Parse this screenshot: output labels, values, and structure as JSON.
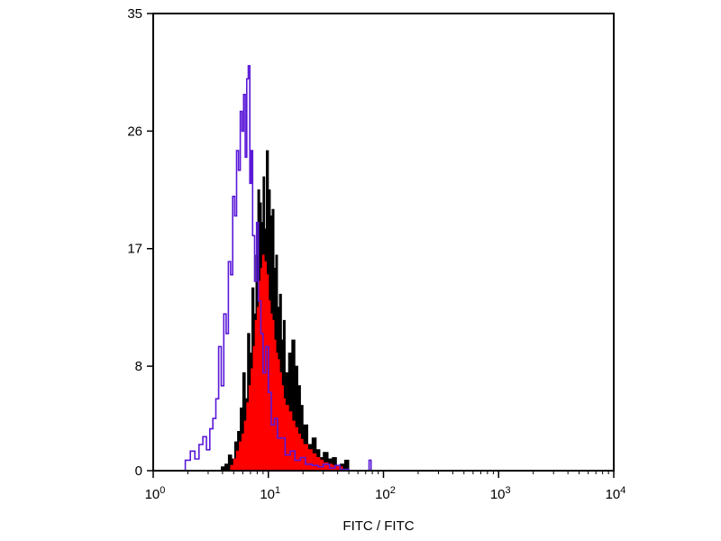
{
  "chart_data": {
    "type": "area",
    "xscale": "log",
    "xlim": [
      1,
      10000
    ],
    "ylim": [
      0,
      35
    ],
    "xlabel": "FITC / FITC",
    "ylabel": "",
    "x_tick_values": [
      1,
      10,
      100,
      1000,
      10000
    ],
    "x_tick_labels": [
      {
        "base": "10",
        "exp": "0"
      },
      {
        "base": "10",
        "exp": "1"
      },
      {
        "base": "10",
        "exp": "2"
      },
      {
        "base": "10",
        "exp": "3"
      },
      {
        "base": "10",
        "exp": "4"
      }
    ],
    "y_tick_values": [
      0,
      8,
      17,
      26,
      35
    ],
    "y_tick_labels": [
      "0",
      "8",
      "17",
      "26",
      "35"
    ],
    "grid": false,
    "series": [
      {
        "style": "outline",
        "color": "#5a18d8",
        "x": [
          1.7,
          1.9,
          2.1,
          2.3,
          2.5,
          2.7,
          2.9,
          3.1,
          3.3,
          3.5,
          3.7,
          3.9,
          4.1,
          4.3,
          4.5,
          4.7,
          4.9,
          5.1,
          5.3,
          5.5,
          5.7,
          5.9,
          6.1,
          6.3,
          6.5,
          6.7,
          6.9,
          7.1,
          7.3,
          7.6,
          7.9,
          8.2,
          8.6,
          9.0,
          9.5,
          10.0,
          10.6,
          11.3,
          12.0,
          13.0,
          14.0,
          15.5,
          17.0,
          19.0,
          21.0,
          24.0,
          27.0,
          30.0,
          34.0,
          38.0,
          42.0,
          50.0,
          60.0,
          70.0,
          75.0,
          78.0,
          80.0
        ],
        "y": [
          0,
          0.8,
          1.5,
          0.9,
          2.0,
          2.6,
          1.6,
          3.2,
          4.0,
          5.5,
          9.5,
          6.5,
          12.0,
          10.5,
          16.0,
          15.0,
          21.0,
          19.5,
          24.5,
          23.0,
          27.5,
          26.0,
          28.8,
          24.0,
          30.0,
          31.0,
          22.0,
          24.5,
          18.0,
          14.5,
          19.0,
          13.0,
          10.5,
          7.5,
          9.5,
          6.0,
          3.5,
          4.0,
          2.5,
          2.5,
          1.2,
          1.5,
          0.8,
          1.0,
          0.5,
          0.4,
          0.3,
          0.5,
          0.2,
          0.4,
          0.1,
          0,
          0,
          0,
          0.8,
          0,
          0
        ]
      },
      {
        "style": "filled",
        "color": "#000000",
        "x": [
          3.6,
          3.9,
          4.2,
          4.5,
          4.8,
          5.1,
          5.4,
          5.7,
          6.0,
          6.3,
          6.6,
          6.9,
          7.2,
          7.5,
          7.8,
          8.1,
          8.4,
          8.7,
          9.0,
          9.3,
          9.6,
          10.0,
          10.4,
          10.8,
          11.2,
          11.6,
          12.0,
          12.5,
          13.0,
          13.5,
          14.0,
          15.0,
          16.0,
          17.0,
          18.0,
          19.0,
          20.0,
          22.0,
          24.0,
          26.0,
          28.0,
          30.0,
          33.0,
          36.0,
          39.0,
          42.0,
          46.0,
          50.0
        ],
        "y": [
          0,
          0.3,
          0.5,
          1.2,
          0.9,
          2.2,
          3.0,
          4.8,
          7.5,
          5.5,
          10.5,
          9.0,
          14.0,
          12.0,
          16.5,
          21.5,
          20.5,
          19.0,
          22.5,
          18.5,
          24.5,
          21.5,
          19.5,
          20.0,
          15.5,
          16.5,
          12.5,
          13.5,
          10.0,
          11.5,
          7.5,
          9.0,
          10.0,
          8.0,
          6.5,
          5.0,
          3.5,
          2.0,
          2.5,
          1.6,
          1.0,
          1.4,
          0.9,
          1.0,
          0.3,
          0.5,
          0.8,
          0
        ]
      },
      {
        "style": "filled",
        "color": "#ff0000",
        "x": [
          4.4,
          4.7,
          5.0,
          5.3,
          5.6,
          5.9,
          6.2,
          6.5,
          6.8,
          7.1,
          7.4,
          7.7,
          8.0,
          8.3,
          8.6,
          8.9,
          9.2,
          9.6,
          10.0,
          10.4,
          10.8,
          11.2,
          11.6,
          12.0,
          12.5,
          13.0,
          13.5,
          14.0,
          15.0,
          16.0,
          17.0,
          18.0,
          19.0,
          20.0,
          22.0,
          24.0,
          26.0,
          28.0,
          30.0,
          33.0,
          36.0,
          40.0,
          44.0,
          48.0
        ],
        "y": [
          0,
          0.4,
          0.9,
          1.5,
          2.2,
          2.8,
          3.8,
          5.2,
          6.5,
          7.8,
          9.5,
          11.5,
          12.5,
          14.5,
          15.5,
          16.5,
          16.0,
          15.0,
          13.0,
          12.0,
          11.5,
          10.0,
          9.0,
          8.5,
          7.5,
          6.5,
          5.5,
          5.0,
          4.5,
          3.8,
          3.3,
          2.8,
          2.4,
          2.0,
          1.6,
          1.3,
          1.0,
          0.8,
          0.6,
          0.5,
          0.4,
          0.3,
          0.1,
          0
        ]
      }
    ]
  }
}
